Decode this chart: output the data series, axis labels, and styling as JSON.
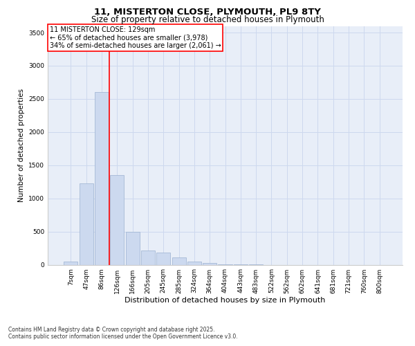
{
  "title_line1": "11, MISTERTON CLOSE, PLYMOUTH, PL9 8TY",
  "title_line2": "Size of property relative to detached houses in Plymouth",
  "xlabel": "Distribution of detached houses by size in Plymouth",
  "ylabel": "Number of detached properties",
  "categories": [
    "7sqm",
    "47sqm",
    "86sqm",
    "126sqm",
    "166sqm",
    "205sqm",
    "245sqm",
    "285sqm",
    "324sqm",
    "364sqm",
    "404sqm",
    "443sqm",
    "483sqm",
    "522sqm",
    "562sqm",
    "602sqm",
    "641sqm",
    "681sqm",
    "721sqm",
    "760sqm",
    "800sqm"
  ],
  "values": [
    50,
    1230,
    2600,
    1350,
    500,
    215,
    185,
    105,
    50,
    25,
    10,
    5,
    3,
    0,
    0,
    0,
    0,
    0,
    0,
    0,
    0
  ],
  "bar_color": "#ccd9ef",
  "bar_edge_color": "#9ab0d0",
  "red_line_x": 2.5,
  "annotation_line1": "11 MISTERTON CLOSE: 129sqm",
  "annotation_line2": "← 65% of detached houses are smaller (3,978)",
  "annotation_line3": "34% of semi-detached houses are larger (2,061) →",
  "ylim": [
    0,
    3600
  ],
  "yticks": [
    0,
    500,
    1000,
    1500,
    2000,
    2500,
    3000,
    3500
  ],
  "grid_color": "#cdd8ee",
  "background_color": "#e8eef8",
  "footer_line1": "Contains HM Land Registry data © Crown copyright and database right 2025.",
  "footer_line2": "Contains public sector information licensed under the Open Government Licence v3.0.",
  "title_fontsize": 9.5,
  "subtitle_fontsize": 8.5,
  "tick_fontsize": 6.5,
  "ylabel_fontsize": 7.5,
  "xlabel_fontsize": 8,
  "annotation_fontsize": 7,
  "footer_fontsize": 5.5
}
